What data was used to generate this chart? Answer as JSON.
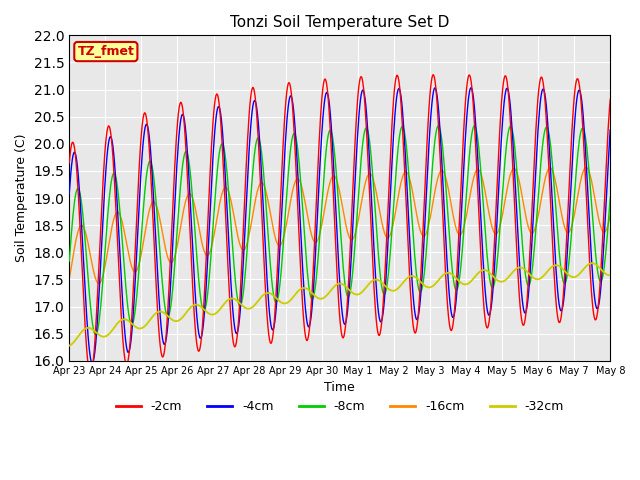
{
  "title": "Tonzi Soil Temperature Set D",
  "xlabel": "Time",
  "ylabel": "Soil Temperature (C)",
  "ylim": [
    16.0,
    22.0
  ],
  "yticks": [
    16.0,
    16.5,
    17.0,
    17.5,
    18.0,
    18.5,
    19.0,
    19.5,
    20.0,
    20.5,
    21.0,
    21.5,
    22.0
  ],
  "xtick_labels": [
    "Apr 23",
    "Apr 24",
    "Apr 25",
    "Apr 26",
    "Apr 27",
    "Apr 28",
    "Apr 29",
    "Apr 30",
    "May 1",
    "May 2",
    "May 3",
    "May 4",
    "May 5",
    "May 6",
    "May 7",
    "May 8"
  ],
  "colors": {
    "-2cm": "#ff0000",
    "-4cm": "#0000ff",
    "-8cm": "#00cc00",
    "-16cm": "#ff8800",
    "-32cm": "#cccc00"
  },
  "legend_label": "TZ_fmet",
  "legend_bg": "#ffff99",
  "legend_edge": "#cc0000",
  "plot_bg": "#e8e8e8",
  "fig_bg": "#ffffff",
  "n_points": 720,
  "days": 15
}
